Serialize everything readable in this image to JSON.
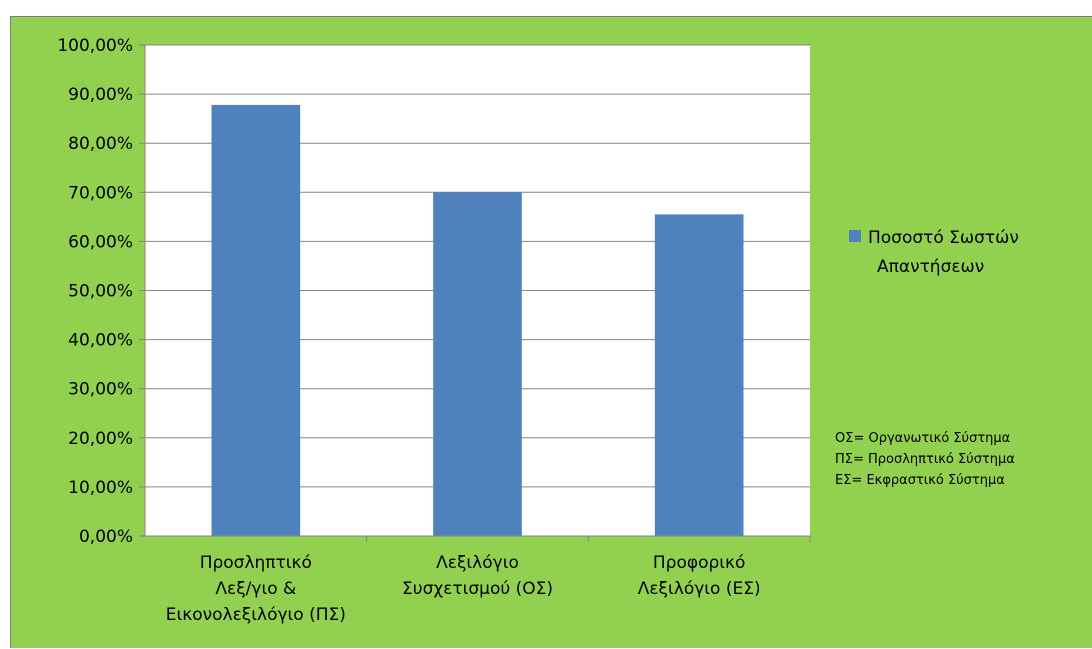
{
  "chart_data": {
    "type": "bar",
    "categories": [
      [
        "Προσληπτικό",
        "Λεξ/γιο &",
        "Εικονολεξιλόγιο (ΠΣ)"
      ],
      [
        "Λεξιλόγιο",
        "Συσχετισμού (ΟΣ)"
      ],
      [
        "Προφορικό",
        "Λεξιλόγιο (ΕΣ)"
      ]
    ],
    "series": [
      {
        "name": "Ποσοστό Σωστών Απαντήσεων",
        "name_lines": [
          "Ποσοστό Σωστών",
          "Απαντήσεων"
        ],
        "values": [
          87.8,
          70.0,
          65.5
        ],
        "color": "#4f81bd"
      }
    ],
    "y_ticks": [
      "0,00%",
      "10,00%",
      "20,00%",
      "30,00%",
      "40,00%",
      "50,00%",
      "60,00%",
      "70,00%",
      "80,00%",
      "90,00%",
      "100,00%"
    ],
    "ylim": [
      0,
      100
    ],
    "grid": true,
    "legend_position": "right",
    "annotations": [
      "ΟΣ= Οργανωτικό  Σύστημα",
      "ΠΣ= Προσληπτικό Σύστημα",
      "ΕΣ= Εκφραστικό  Σύστημα"
    ],
    "colors": {
      "background": "#92d050",
      "plot_area": "#ffffff",
      "gridline": "#868686",
      "bar": "#4f81bd"
    }
  }
}
